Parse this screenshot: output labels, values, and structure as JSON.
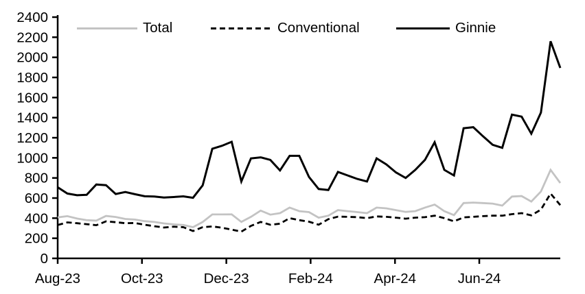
{
  "chart_data": {
    "type": "line",
    "title": "",
    "legend_position": "top",
    "grid": "off",
    "background_color": "#ffffff",
    "axis_color": "#000000",
    "x_axis": {
      "tick_labels": [
        "Aug-23",
        "Oct-23",
        "Dec-23",
        "Feb-24",
        "Apr-24",
        "Jun-24"
      ],
      "tick_week_positions": [
        0,
        8.72,
        17.45,
        26.17,
        34.9,
        43.62
      ]
    },
    "y_axis": {
      "min": 0,
      "max": 2400,
      "tick_step": 200,
      "tick_labels": [
        "0",
        "200",
        "400",
        "600",
        "800",
        "1000",
        "1200",
        "1400",
        "1600",
        "1800",
        "2000",
        "2200",
        "2400"
      ]
    },
    "n_points": 53,
    "x_description": "weekly observations",
    "series": [
      {
        "name": "Total",
        "color": "#c3c3c3",
        "line_style": "solid",
        "line_width": 2.8,
        "values": [
          408,
          420,
          396,
          380,
          376,
          422,
          412,
          392,
          386,
          370,
          362,
          348,
          338,
          332,
          310,
          362,
          437,
          437,
          438,
          363,
          413,
          475,
          435,
          450,
          505,
          470,
          460,
          405,
          425,
          480,
          470,
          460,
          450,
          505,
          498,
          480,
          462,
          470,
          505,
          535,
          470,
          430,
          550,
          555,
          550,
          545,
          525,
          615,
          620,
          565,
          665,
          880,
          750
        ]
      },
      {
        "name": "Conventional",
        "color": "#000000",
        "line_style": "dashed",
        "line_width": 2.8,
        "values": [
          332,
          358,
          350,
          340,
          330,
          368,
          360,
          350,
          352,
          335,
          320,
          307,
          315,
          310,
          272,
          310,
          318,
          305,
          286,
          266,
          323,
          363,
          334,
          345,
          400,
          380,
          365,
          335,
          390,
          415,
          413,
          410,
          400,
          417,
          413,
          405,
          395,
          405,
          410,
          425,
          400,
          368,
          408,
          413,
          420,
          425,
          425,
          440,
          450,
          428,
          485,
          645,
          530
        ]
      },
      {
        "name": "Ginnie",
        "color": "#000000",
        "line_style": "solid",
        "line_width": 3,
        "values": [
          707,
          645,
          628,
          632,
          735,
          728,
          640,
          660,
          638,
          618,
          615,
          605,
          610,
          617,
          603,
          727,
          1090,
          1120,
          1160,
          765,
          995,
          1005,
          980,
          875,
          1020,
          1020,
          810,
          690,
          680,
          860,
          825,
          790,
          765,
          995,
          935,
          855,
          800,
          880,
          980,
          1155,
          880,
          825,
          1295,
          1305,
          1215,
          1130,
          1100,
          1430,
          1410,
          1240,
          1450,
          2160,
          1895
        ]
      }
    ]
  }
}
